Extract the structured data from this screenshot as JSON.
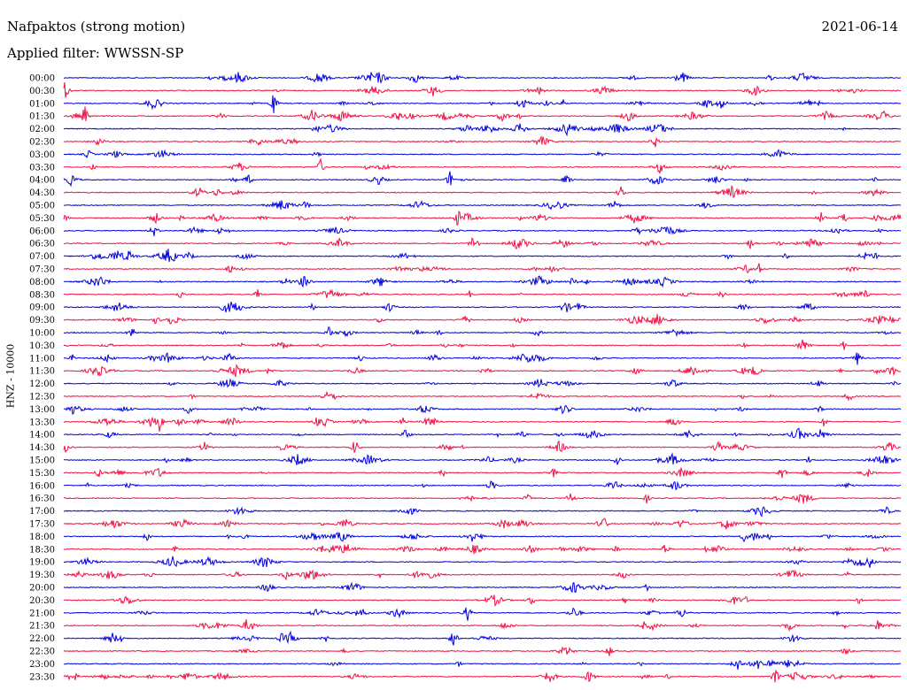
{
  "header": {
    "station": "Nafpaktos (strong motion)",
    "date": "2021-06-14",
    "filter": "Applied filter: WWSSN-SP",
    "channel_label": "HNZ - 10000"
  },
  "colors": {
    "trace_a": "#0000dd",
    "trace_b": "#ee1144"
  },
  "chart_data": {
    "type": "line",
    "title": "Nafpaktos (strong motion)",
    "subtitle": "Applied filter: WWSSN-SP",
    "ylabel": "HNZ - 10000",
    "rows": [
      "00:00",
      "00:30",
      "01:00",
      "01:30",
      "02:00",
      "02:30",
      "03:00",
      "03:30",
      "04:00",
      "04:30",
      "05:00",
      "05:30",
      "06:00",
      "06:30",
      "07:00",
      "07:30",
      "08:00",
      "08:30",
      "09:00",
      "09:30",
      "10:00",
      "10:30",
      "11:00",
      "11:30",
      "12:00",
      "12:30",
      "13:00",
      "13:30",
      "14:00",
      "14:30",
      "15:00",
      "15:30",
      "16:00",
      "16:30",
      "17:00",
      "17:30",
      "18:00",
      "18:30",
      "19:00",
      "19:30",
      "20:00",
      "20:30",
      "21:00",
      "21:30",
      "22:00",
      "22:30",
      "23:00",
      "23:30"
    ],
    "row_colors": [
      "#0000dd",
      "#ee1144"
    ],
    "grid": false
  }
}
